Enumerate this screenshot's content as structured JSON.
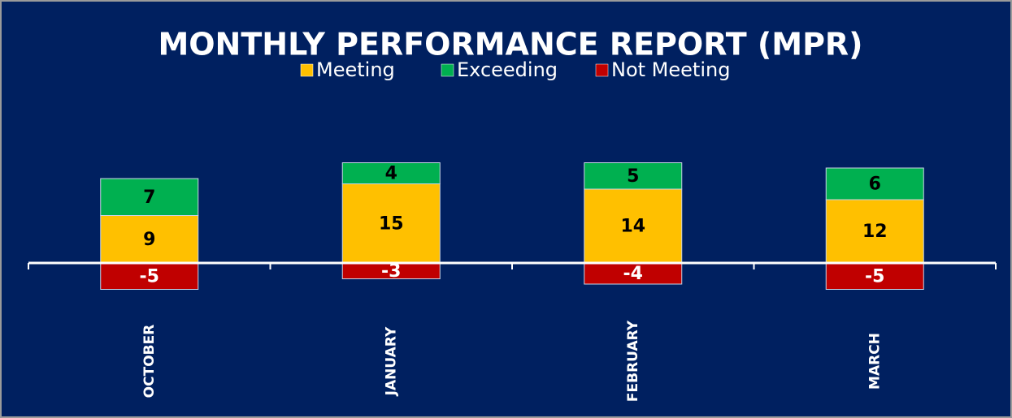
{
  "chart_data": {
    "type": "stacked_bar",
    "title": "MONTHLY PERFORMANCE REPORT (MPR)",
    "categories": [
      "OCTOBER",
      "JANUARY",
      "FEBRUARY",
      "MARCH"
    ],
    "series": [
      {
        "name": "Meeting",
        "color": "#FFC000",
        "values": [
          9,
          15,
          14,
          12
        ]
      },
      {
        "name": "Exceeding",
        "color": "#00B050",
        "values": [
          7,
          4,
          5,
          6
        ]
      },
      {
        "name": "Not Meeting",
        "color": "#C00000",
        "values": [
          -5,
          -3,
          -4,
          -5
        ]
      }
    ],
    "ylim": [
      -10,
      30
    ],
    "legend": "top"
  }
}
